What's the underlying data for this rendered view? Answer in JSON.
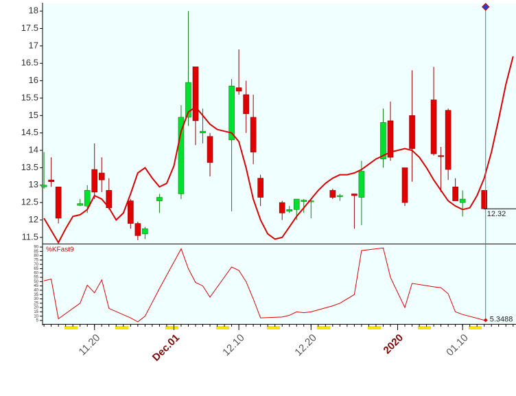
{
  "chart_data": [
    {
      "type": "candlestick",
      "x": [
        13,
        14,
        15,
        18,
        19,
        20,
        21,
        22,
        25,
        26,
        27,
        29,
        32,
        33,
        34,
        35,
        36,
        39,
        40,
        41,
        42,
        43,
        46,
        47,
        48,
        49,
        50,
        53,
        54,
        56,
        57,
        60,
        61,
        63,
        64,
        67,
        68,
        69,
        70,
        71,
        74
      ],
      "open": [
        12.95,
        13.15,
        12.95,
        12.42,
        12.4,
        13.45,
        13.35,
        12.85,
        12.55,
        11.9,
        11.6,
        12.55,
        12.75,
        14.95,
        16.4,
        14.5,
        14.4,
        14.3,
        15.8,
        15.6,
        14.95,
        13.2,
        12.5,
        12.25,
        12.3,
        12.53,
        12.55,
        12.85,
        12.7,
        12.75,
        12.65,
        13.75,
        14.85,
        13.5,
        15.0,
        15.45,
        13.85,
        15.15,
        12.95,
        12.5,
        12.85
      ],
      "high": [
        13.95,
        13.8,
        12.95,
        12.6,
        13.0,
        14.2,
        13.8,
        13.2,
        12.6,
        11.95,
        11.8,
        12.75,
        15.3,
        18.0,
        16.4,
        15.2,
        14.5,
        16.05,
        16.9,
        16.0,
        15.6,
        13.3,
        12.55,
        12.4,
        12.6,
        12.6,
        12.6,
        12.9,
        12.75,
        12.75,
        13.7,
        15.2,
        15.4,
        13.5,
        16.3,
        16.4,
        14.1,
        15.2,
        13.2,
        12.85,
        12.85
      ],
      "low": [
        12.9,
        12.95,
        11.9,
        12.4,
        12.2,
        12.6,
        12.8,
        12.3,
        11.75,
        11.42,
        11.45,
        12.2,
        12.6,
        14.7,
        14.15,
        14.2,
        13.25,
        12.25,
        15.6,
        14.5,
        13.6,
        12.4,
        12.0,
        12.2,
        12.0,
        12.2,
        12.05,
        12.6,
        12.55,
        11.75,
        11.85,
        13.5,
        13.7,
        12.4,
        13.1,
        13.85,
        12.8,
        13.15,
        12.55,
        12.1,
        12.3
      ],
      "close": [
        13.0,
        13.1,
        12.05,
        12.47,
        12.85,
        12.8,
        13.15,
        12.35,
        11.9,
        11.55,
        11.75,
        12.65,
        14.95,
        15.95,
        14.85,
        14.55,
        13.65,
        15.85,
        15.7,
        15.05,
        13.95,
        12.65,
        12.2,
        12.3,
        12.6,
        12.57,
        12.55,
        12.65,
        12.7,
        12.7,
        13.4,
        14.8,
        13.8,
        12.5,
        14.05,
        13.9,
        13.83,
        13.45,
        12.55,
        12.6,
        12.32
      ],
      "up_color": "#00e030",
      "down_color": "#e00000",
      "overlay": {
        "color": "#dd0000",
        "x": [
          13,
          14,
          15,
          16,
          17,
          18,
          19,
          20,
          21,
          22,
          23,
          24,
          25,
          26,
          27,
          28,
          29,
          30,
          31,
          32,
          33,
          34,
          35,
          36,
          37,
          38,
          39,
          40,
          41,
          42,
          43,
          44,
          45,
          46,
          47,
          48,
          49,
          50,
          51,
          52,
          53,
          54,
          55,
          56,
          57,
          58,
          59,
          60,
          61,
          62,
          63,
          64,
          65,
          66,
          67,
          68,
          69,
          70,
          71,
          72,
          73,
          74,
          75,
          76,
          77,
          78
        ],
        "values": [
          12.05,
          11.7,
          11.35,
          11.75,
          12.1,
          12.15,
          12.3,
          12.7,
          12.6,
          12.35,
          12.0,
          12.2,
          12.75,
          13.35,
          13.5,
          13.2,
          12.95,
          13.05,
          13.55,
          14.55,
          15.1,
          15.25,
          15.0,
          14.75,
          14.6,
          14.55,
          14.5,
          14.25,
          13.5,
          12.6,
          12.0,
          11.6,
          11.45,
          11.5,
          11.8,
          12.1,
          12.35,
          12.6,
          12.85,
          13.05,
          13.2,
          13.3,
          13.3,
          13.35,
          13.45,
          13.6,
          13.75,
          13.85,
          13.95,
          14.0,
          14.05,
          14.0,
          13.8,
          13.5,
          13.15,
          12.85,
          12.55,
          12.4,
          12.3,
          12.35,
          12.7,
          13.2,
          13.95,
          14.9,
          15.9,
          16.7
        ]
      },
      "xlim": [
        12.8,
        78.4
      ],
      "xticks": [
        {
          "value": 20,
          "label": "11.20"
        },
        {
          "value": 31,
          "label": "Dec.01",
          "color": "#7a0a0a"
        },
        {
          "value": 40,
          "label": "12.10"
        },
        {
          "value": 50,
          "label": "12.20"
        },
        {
          "value": 62,
          "label": "2020",
          "color": "#7a0a0a"
        },
        {
          "value": 71,
          "label": "01.10"
        }
      ],
      "ylim": [
        11.32,
        18.22
      ],
      "yticks": [
        11.5,
        12,
        12.5,
        13,
        13.5,
        14,
        14.5,
        15,
        15.5,
        16,
        16.5,
        17,
        17.5,
        18
      ]
    },
    {
      "type": "line",
      "x": [
        13,
        14,
        15,
        18,
        19,
        20,
        21,
        22,
        25,
        26,
        27,
        29,
        32,
        33,
        34,
        35,
        36,
        39,
        40,
        41,
        42,
        43,
        46,
        47,
        48,
        49,
        50,
        53,
        54,
        56,
        57,
        60,
        61,
        63,
        64,
        67,
        68,
        69,
        70,
        71,
        74
      ],
      "series": [
        {
          "name": "%KFast9",
          "color": "#dd0000",
          "values": [
            51,
            53,
            7,
            25,
            46,
            37,
            52,
            19,
            8,
            3.5,
            10,
            42,
            88,
            65,
            49,
            45,
            32,
            67,
            63,
            50,
            30,
            8,
            9,
            11,
            15,
            14,
            15,
            22,
            25,
            35,
            86,
            89,
            55,
            20,
            48,
            44,
            43,
            36,
            15,
            12,
            5.3488
          ]
        }
      ],
      "xlim": [
        12.8,
        78.4
      ],
      "ylim": [
        1,
        92.4
      ],
      "yticks": [
        5,
        10,
        15,
        20,
        25,
        30,
        35,
        40,
        45,
        50,
        55,
        60,
        65,
        70,
        75,
        80,
        85,
        90
      ]
    }
  ]
}
